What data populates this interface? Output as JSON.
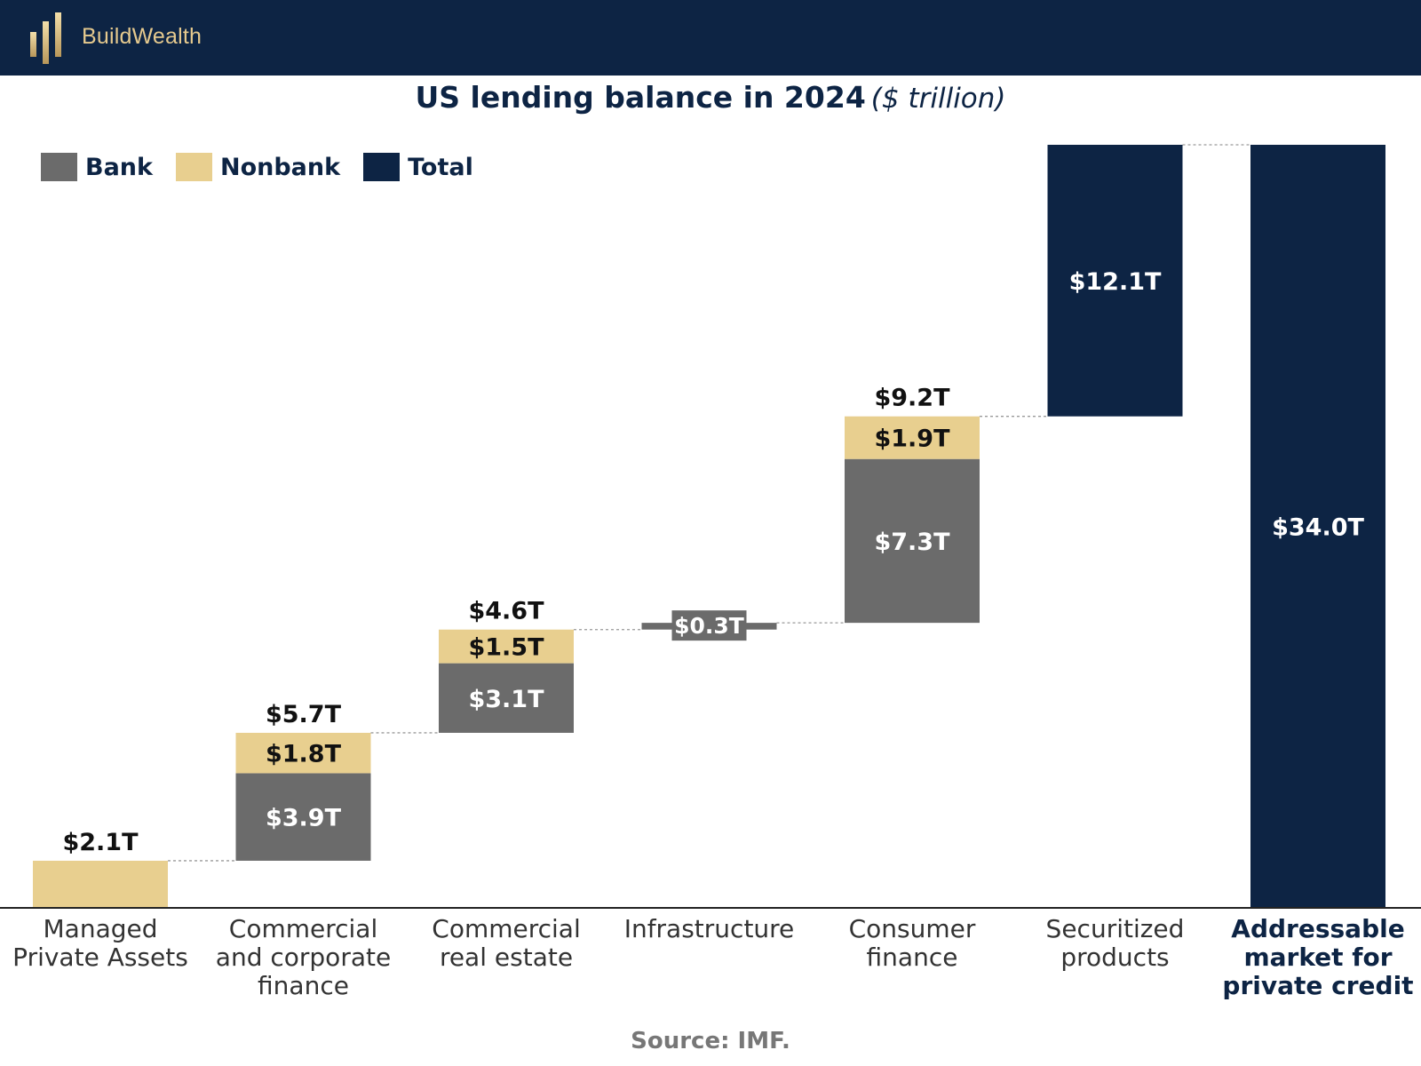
{
  "brand": {
    "name": "BuildWealth",
    "logo_icon": "bars-logo-icon"
  },
  "colors": {
    "bank": "#6b6b6b",
    "nonbank": "#e8cf8f",
    "total": "#0d2444",
    "header_bg": "#0d2444",
    "brand_gold": "#e5c98e"
  },
  "chart_data": {
    "type": "waterfall",
    "title": "US lending balance in 2024",
    "subtitle": "($ trillion)",
    "legend": [
      {
        "label": "Bank",
        "key": "bank"
      },
      {
        "label": "Nonbank",
        "key": "nonbank"
      },
      {
        "label": "Total",
        "key": "total"
      }
    ],
    "categories": [
      {
        "label": [
          "Managed",
          "Private Assets"
        ],
        "bold": false,
        "bank": 0,
        "nonbank": 2.1,
        "total_label": "$2.1T",
        "segment_labels": {}
      },
      {
        "label": [
          "Commercial",
          "and corporate",
          "finance"
        ],
        "bold": false,
        "bank": 3.9,
        "nonbank": 1.8,
        "total_label": "$5.7T",
        "segment_labels": {
          "bank": "$3.9T",
          "nonbank": "$1.8T"
        }
      },
      {
        "label": [
          "Commercial",
          "real estate"
        ],
        "bold": false,
        "bank": 3.1,
        "nonbank": 1.5,
        "total_label": "$4.6T",
        "segment_labels": {
          "bank": "$3.1T",
          "nonbank": "$1.5T"
        }
      },
      {
        "label": [
          "Infrastructure"
        ],
        "bold": false,
        "bank": 0.3,
        "nonbank": 0,
        "total_label": "",
        "segment_labels": {
          "bank": "$0.3T"
        }
      },
      {
        "label": [
          "Consumer",
          "finance"
        ],
        "bold": false,
        "bank": 7.3,
        "nonbank": 1.9,
        "total_label": "$9.2T",
        "segment_labels": {
          "bank": "$7.3T",
          "nonbank": "$1.9T"
        }
      },
      {
        "label": [
          "Securitized",
          "products"
        ],
        "bold": false,
        "total": 12.1,
        "total_label": "",
        "segment_labels": {
          "total": "$12.1T"
        }
      },
      {
        "label": [
          "Addressable",
          "market for",
          "private credit"
        ],
        "bold": true,
        "is_sum": true,
        "total": 34.0,
        "total_label": "",
        "segment_labels": {
          "total": "$34.0T"
        }
      }
    ],
    "ylim": [
      0,
      34.0
    ]
  },
  "source": "Source: IMF."
}
